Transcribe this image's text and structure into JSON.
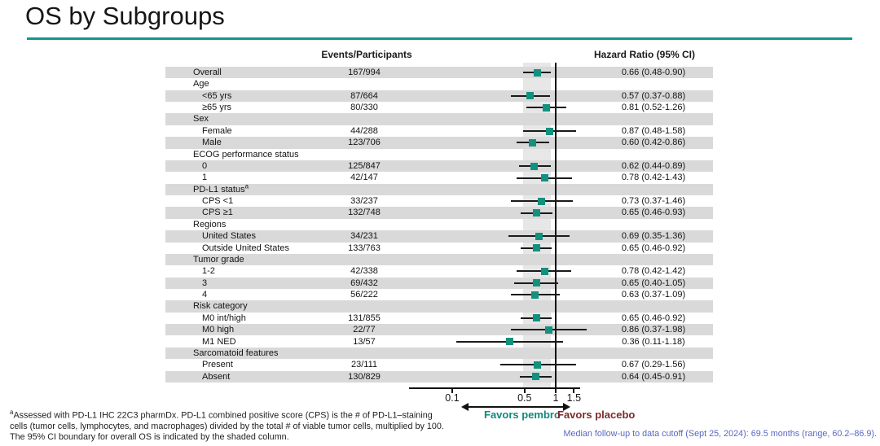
{
  "slide": {
    "title": "OS by Subgroups",
    "accent_color": "#14968c"
  },
  "columns": {
    "events_header": "Events/Participants",
    "hazard_header": "Hazard Ratio (95% CI)"
  },
  "chart_data": {
    "type": "scatter",
    "subtype": "forest-plot",
    "title": "OS by Subgroups",
    "marker_color": "#12917f",
    "marker_shape": "square",
    "x_axis": {
      "scale": "log",
      "tick_labels": [
        "0.1",
        "0.5",
        "1",
        "1.5"
      ],
      "tick_values": [
        0.1,
        0.5,
        1,
        1.5
      ],
      "reference_line": 1.0,
      "shaded_band_ci": [
        0.48,
        0.9
      ],
      "range": [
        0.038,
        1.72
      ]
    },
    "rows": [
      {
        "label": "Overall",
        "level": 0,
        "events": "167/994",
        "hr": 0.66,
        "lo": 0.48,
        "hi": 0.9,
        "hr_text": "0.66 (0.48-0.90)"
      },
      {
        "label": "Age",
        "level": 0,
        "header": true
      },
      {
        "label": "<65 yrs",
        "level": 1,
        "events": "87/664",
        "hr": 0.57,
        "lo": 0.37,
        "hi": 0.88,
        "hr_text": "0.57 (0.37-0.88)"
      },
      {
        "label": "≥65 yrs",
        "level": 1,
        "events": "80/330",
        "hr": 0.81,
        "lo": 0.52,
        "hi": 1.26,
        "hr_text": "0.81 (0.52-1.26)"
      },
      {
        "label": "Sex",
        "level": 0,
        "header": true
      },
      {
        "label": "Female",
        "level": 1,
        "events": "44/288",
        "hr": 0.87,
        "lo": 0.48,
        "hi": 1.58,
        "hr_text": "0.87 (0.48-1.58)"
      },
      {
        "label": "Male",
        "level": 1,
        "events": "123/706",
        "hr": 0.6,
        "lo": 0.42,
        "hi": 0.86,
        "hr_text": "0.60 (0.42-0.86)"
      },
      {
        "label": "ECOG performance status",
        "level": 0,
        "header": true
      },
      {
        "label": "0",
        "level": 1,
        "events": "125/847",
        "hr": 0.62,
        "lo": 0.44,
        "hi": 0.89,
        "hr_text": "0.62 (0.44-0.89)"
      },
      {
        "label": "1",
        "level": 1,
        "events": "42/147",
        "hr": 0.78,
        "lo": 0.42,
        "hi": 1.43,
        "hr_text": "0.78 (0.42-1.43)"
      },
      {
        "label": "PD-L1 status",
        "sup": "a",
        "level": 0,
        "header": true
      },
      {
        "label": "CPS <1",
        "level": 1,
        "events": "33/237",
        "hr": 0.73,
        "lo": 0.37,
        "hi": 1.46,
        "hr_text": "0.73 (0.37-1.46)"
      },
      {
        "label": "CPS ≥1",
        "level": 1,
        "events": "132/748",
        "hr": 0.65,
        "lo": 0.46,
        "hi": 0.93,
        "hr_text": "0.65 (0.46-0.93)"
      },
      {
        "label": "Regions",
        "level": 0,
        "header": true
      },
      {
        "label": "United States",
        "level": 1,
        "events": "34/231",
        "hr": 0.69,
        "lo": 0.35,
        "hi": 1.36,
        "hr_text": "0.69 (0.35-1.36)"
      },
      {
        "label": "Outside United States",
        "level": 1,
        "events": "133/763",
        "hr": 0.65,
        "lo": 0.46,
        "hi": 0.92,
        "hr_text": "0.65 (0.46-0.92)"
      },
      {
        "label": "Tumor grade",
        "level": 0,
        "header": true
      },
      {
        "label": "1-2",
        "level": 1,
        "events": "42/338",
        "hr": 0.78,
        "lo": 0.42,
        "hi": 1.42,
        "hr_text": "0.78 (0.42-1.42)"
      },
      {
        "label": "3",
        "level": 1,
        "events": "69/432",
        "hr": 0.65,
        "lo": 0.4,
        "hi": 1.05,
        "hr_text": "0.65 (0.40-1.05)"
      },
      {
        "label": "4",
        "level": 1,
        "events": "56/222",
        "hr": 0.63,
        "lo": 0.37,
        "hi": 1.09,
        "hr_text": "0.63 (0.37-1.09)"
      },
      {
        "label": "Risk category",
        "level": 0,
        "header": true
      },
      {
        "label": "M0 int/high",
        "level": 1,
        "events": "131/855",
        "hr": 0.65,
        "lo": 0.46,
        "hi": 0.92,
        "hr_text": "0.65 (0.46-0.92)"
      },
      {
        "label": "M0 high",
        "level": 1,
        "events": "22/77",
        "hr": 0.86,
        "lo": 0.37,
        "hi": 1.98,
        "hr_text": "0.86 (0.37-1.98)"
      },
      {
        "label": "M1 NED",
        "level": 1,
        "events": "13/57",
        "hr": 0.36,
        "lo": 0.11,
        "hi": 1.18,
        "hr_text": "0.36 (0.11-1.18)"
      },
      {
        "label": "Sarcomatoid features",
        "level": 0,
        "header": true
      },
      {
        "label": "Present",
        "level": 1,
        "events": "23/111",
        "hr": 0.67,
        "lo": 0.29,
        "hi": 1.56,
        "hr_text": "0.67 (0.29-1.56)"
      },
      {
        "label": "Absent",
        "level": 1,
        "events": "130/829",
        "hr": 0.64,
        "lo": 0.45,
        "hi": 0.91,
        "hr_text": "0.64 (0.45-0.91)"
      }
    ],
    "favors": {
      "left_label": "Favors pembro",
      "left_color": "#0e8a7b",
      "right_label": "Favors placebo",
      "right_color": "#7b2a28"
    }
  },
  "footnotes": {
    "sup": "a",
    "lines": [
      "Assessed with PD-L1 IHC 22C3 pharmDx. PD-L1 combined positive score (CPS) is the # of PD-L1–staining",
      "cells (tumor cells, lymphocytes, and macrophages) divided by the total # of viable tumor cells, multiplied by 100.",
      "The 95% CI boundary for overall OS is indicated by the shaded column."
    ]
  },
  "followup_note": {
    "text": "Median follow-up to data cutoff (Sept 25, 2024): 69.5 months (range, 60.2–86.9).",
    "color": "#5a68c0"
  }
}
